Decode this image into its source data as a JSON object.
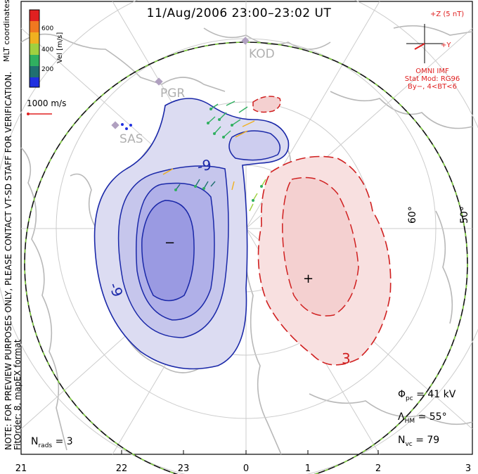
{
  "title": "11/Aug/2006 23:00–23:02 UT",
  "note": [
    "NOTE: FOR PREVIEW PURPOSES ONLY, PLEASE CONTACT VT-SD STAFF FOR VERIFICATION.",
    "FitOrder: 8, mapEX format"
  ],
  "coords_label": "MLT coordinates",
  "colorbar": {
    "title": "Vel [m/s]",
    "ticks": [
      "600",
      "400",
      "200"
    ],
    "colors": [
      "#e02020",
      "#f07820",
      "#f0b020",
      "#a0d040",
      "#30b060",
      "#207070",
      "#2030e0"
    ]
  },
  "velocity_ref": "1000 m/s",
  "radars": [
    "KOD",
    "PGR",
    "SAS"
  ],
  "imf": {
    "z_label": "+Z (5 nT)",
    "y_label": "+Y",
    "source": "OMNI IMF",
    "model": "Stat Mod: RG96",
    "model_params": "By−, 4<BT<6"
  },
  "contour_labels": {
    "neg": "-9",
    "pos": "3",
    "min_marker": "−",
    "max_marker": "+"
  },
  "lat_labels": [
    "60°",
    "50°"
  ],
  "stats": {
    "phi_pc": {
      "sym": "Φ",
      "sub": "pc",
      "eq": "= 41 kV"
    },
    "lambda_hm": {
      "sym": "Λ",
      "sub": "HM",
      "eq": "= 55°"
    },
    "n_vc": {
      "sym": "N",
      "sub": "vc",
      "eq": "= 79"
    }
  },
  "n_rads": {
    "sym": "N",
    "sub": "rads",
    "eq": "= 3"
  },
  "x_ticks": [
    "21",
    "22",
    "23",
    "0",
    "1",
    "2",
    "3"
  ],
  "colors": {
    "neg_line": "#1a28a8",
    "pos_line": "#d02020",
    "neg_fill": "#dcdcf2",
    "pos_fill": "#f8e0e0",
    "boundary": "#111111",
    "boundary_dash": "#80d040",
    "coast": "#b8b8b8"
  }
}
